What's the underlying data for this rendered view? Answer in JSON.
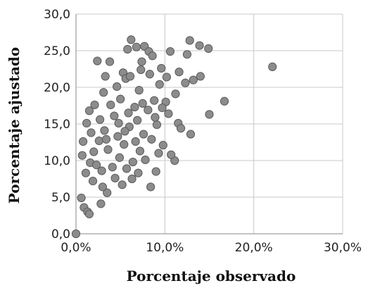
{
  "chart_data": {
    "type": "scatter",
    "title": "",
    "xlabel": "Porcentaje observado",
    "ylabel": "Porcentaje ajustado",
    "xlim": [
      0,
      30
    ],
    "ylim": [
      0,
      30
    ],
    "x_ticks": [
      "0,0%",
      "10,0%",
      "20,0%",
      "30,0%"
    ],
    "y_ticks": [
      "0,0",
      "5,0",
      "10,0",
      "15,0",
      "20,0",
      "25,0",
      "30,0"
    ],
    "grid": true,
    "legend": "none",
    "marker_color": "#8c8c8c",
    "marker_edge_color": "#5a5a5a",
    "series": [
      {
        "points": [
          [
            0.0,
            0.0
          ],
          [
            22.1,
            22.8
          ],
          [
            16.7,
            18.1
          ],
          [
            15.0,
            16.3
          ],
          [
            14.9,
            25.3
          ],
          [
            13.9,
            25.7
          ],
          [
            12.8,
            26.4
          ],
          [
            6.2,
            26.5
          ],
          [
            7.7,
            25.6
          ],
          [
            8.2,
            24.9
          ],
          [
            10.6,
            24.9
          ],
          [
            12.5,
            24.5
          ],
          [
            14.0,
            21.5
          ],
          [
            13.2,
            21.0
          ],
          [
            12.9,
            13.6
          ],
          [
            11.5,
            15.1
          ],
          [
            11.8,
            14.4
          ],
          [
            11.1,
            10.0
          ],
          [
            10.7,
            10.8
          ],
          [
            8.4,
            6.4
          ],
          [
            9.0,
            8.5
          ],
          [
            2.4,
            23.6
          ],
          [
            3.8,
            23.5
          ],
          [
            3.3,
            21.5
          ],
          [
            5.3,
            22.0
          ],
          [
            5.6,
            21.2
          ],
          [
            5.8,
            25.2
          ],
          [
            6.8,
            25.5
          ],
          [
            7.4,
            23.5
          ],
          [
            8.6,
            24.3
          ],
          [
            0.6,
            4.9
          ],
          [
            0.9,
            3.6
          ],
          [
            1.3,
            3.0
          ],
          [
            1.5,
            2.7
          ],
          [
            2.8,
            4.1
          ],
          [
            3.5,
            5.6
          ],
          [
            3.0,
            6.4
          ],
          [
            1.6,
            9.7
          ],
          [
            1.1,
            8.3
          ],
          [
            0.7,
            10.7
          ],
          [
            0.8,
            12.6
          ],
          [
            1.2,
            15.1
          ],
          [
            1.5,
            16.8
          ],
          [
            2.1,
            17.6
          ],
          [
            9.6,
            22.6
          ],
          [
            10.2,
            21.4
          ],
          [
            11.6,
            22.1
          ],
          [
            12.3,
            20.6
          ],
          [
            11.2,
            19.1
          ],
          [
            10.1,
            18.0
          ],
          [
            9.4,
            20.4
          ],
          [
            8.3,
            21.8
          ],
          [
            7.1,
            19.6
          ],
          [
            6.6,
            17.3
          ],
          [
            5.9,
            16.5
          ],
          [
            5.0,
            18.4
          ],
          [
            4.3,
            16.1
          ],
          [
            3.9,
            17.6
          ],
          [
            3.2,
            14.1
          ],
          [
            2.6,
            12.7
          ],
          [
            2.0,
            11.2
          ],
          [
            1.7,
            13.8
          ],
          [
            4.7,
            13.3
          ],
          [
            5.4,
            12.2
          ],
          [
            6.0,
            14.6
          ],
          [
            6.9,
            15.5
          ],
          [
            7.6,
            13.6
          ],
          [
            8.1,
            16.9
          ],
          [
            8.8,
            18.2
          ],
          [
            9.1,
            14.9
          ],
          [
            9.8,
            12.1
          ],
          [
            10.4,
            16.4
          ],
          [
            7.2,
            11.3
          ],
          [
            6.4,
            9.8
          ],
          [
            5.7,
            8.9
          ],
          [
            4.9,
            10.4
          ],
          [
            4.1,
            9.1
          ],
          [
            3.6,
            11.5
          ],
          [
            2.9,
            8.6
          ],
          [
            2.3,
            9.4
          ],
          [
            1.9,
            7.2
          ],
          [
            4.4,
            7.6
          ],
          [
            5.2,
            6.7
          ],
          [
            6.3,
            7.5
          ],
          [
            7.0,
            8.3
          ],
          [
            7.8,
            10.1
          ],
          [
            8.5,
            12.9
          ],
          [
            9.3,
            11.0
          ],
          [
            3.1,
            19.3
          ],
          [
            4.6,
            20.1
          ],
          [
            6.1,
            21.5
          ],
          [
            7.3,
            22.4
          ],
          [
            2.7,
            15.6
          ],
          [
            3.4,
            12.9
          ],
          [
            4.8,
            15.1
          ],
          [
            5.5,
            14.0
          ],
          [
            6.7,
            12.6
          ],
          [
            7.5,
            17.8
          ],
          [
            8.9,
            15.9
          ],
          [
            9.7,
            17.2
          ]
        ]
      }
    ]
  }
}
